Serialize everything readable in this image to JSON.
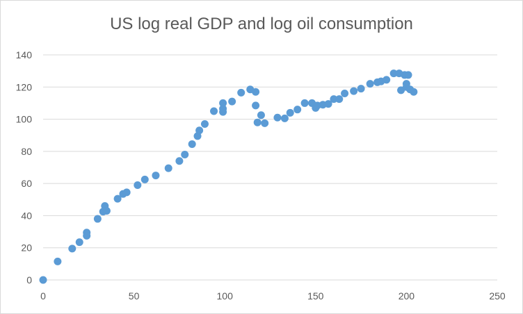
{
  "chart_data": {
    "type": "scatter",
    "title": "US log real GDP and log oil consumption",
    "xlabel": "",
    "ylabel": "",
    "xlim": [
      0,
      250
    ],
    "ylim": [
      0,
      140
    ],
    "xticks": [
      0,
      50,
      100,
      150,
      200,
      250
    ],
    "yticks": [
      0,
      20,
      40,
      60,
      80,
      100,
      120,
      140
    ],
    "grid": "horizontal",
    "legend": "none",
    "marker_color": "#5b9bd5",
    "series": [
      {
        "points": [
          [
            0,
            0
          ],
          [
            8,
            11.5
          ],
          [
            16,
            19.5
          ],
          [
            20,
            23.5
          ],
          [
            24,
            29.5
          ],
          [
            24,
            27.5
          ],
          [
            30,
            38
          ],
          [
            33,
            42.5
          ],
          [
            34,
            46
          ],
          [
            35,
            43
          ],
          [
            41,
            50.5
          ],
          [
            44,
            53.5
          ],
          [
            46,
            54.5
          ],
          [
            52,
            59
          ],
          [
            56,
            62.5
          ],
          [
            62,
            65
          ],
          [
            69,
            69.5
          ],
          [
            75,
            74
          ],
          [
            78,
            78
          ],
          [
            82,
            84.5
          ],
          [
            85,
            89.5
          ],
          [
            86,
            93
          ],
          [
            89,
            97
          ],
          [
            94,
            105
          ],
          [
            99,
            104.5
          ],
          [
            99,
            106.5
          ],
          [
            99,
            110
          ],
          [
            104,
            111
          ],
          [
            109,
            116.5
          ],
          [
            114,
            118.5
          ],
          [
            117,
            117
          ],
          [
            117,
            108.5
          ],
          [
            118,
            98
          ],
          [
            120,
            102.5
          ],
          [
            122,
            97.5
          ],
          [
            129,
            101
          ],
          [
            133,
            100.5
          ],
          [
            136,
            104
          ],
          [
            140,
            106
          ],
          [
            144,
            110
          ],
          [
            148,
            110
          ],
          [
            150,
            107
          ],
          [
            151,
            108.5
          ],
          [
            154,
            109
          ],
          [
            157,
            109.5
          ],
          [
            160,
            112.5
          ],
          [
            163,
            112.5
          ],
          [
            166,
            116
          ],
          [
            171,
            117.5
          ],
          [
            175,
            119
          ],
          [
            180,
            122
          ],
          [
            184,
            123
          ],
          [
            186,
            123.5
          ],
          [
            189,
            124.5
          ],
          [
            193,
            128.5
          ],
          [
            196,
            128.5
          ],
          [
            197,
            118
          ],
          [
            199,
            127.5
          ],
          [
            200,
            120
          ],
          [
            200,
            122
          ],
          [
            201,
            127.5
          ],
          [
            202,
            118.5
          ],
          [
            204,
            117
          ]
        ]
      }
    ]
  }
}
